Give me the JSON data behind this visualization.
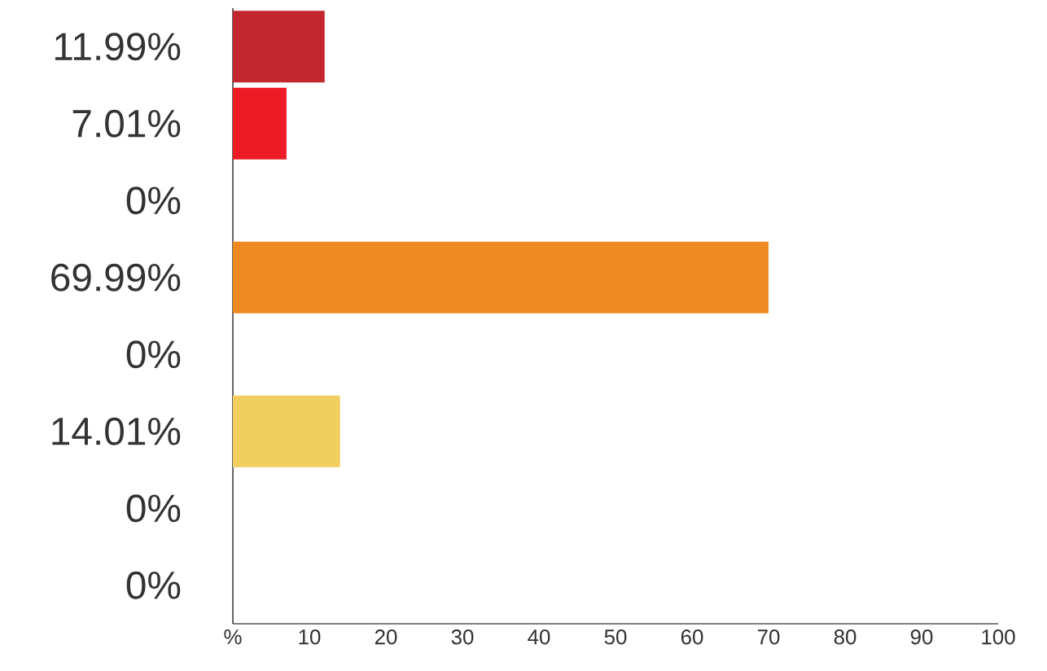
{
  "chart_data": {
    "type": "bar",
    "orientation": "horizontal",
    "categories": [
      null,
      null,
      null,
      null,
      null,
      null,
      null,
      null
    ],
    "values": [
      11.99,
      7.01,
      0,
      69.99,
      0,
      14.01,
      0,
      0
    ],
    "value_labels": [
      "11.99%",
      "7.01%",
      "0%",
      "69.99%",
      "0%",
      "14.01%",
      "0%",
      "0%"
    ],
    "colors": [
      "#c1272d",
      "#ed1c24",
      "#f15a29",
      "#ef8a22",
      "#f7a93b",
      "#f2ce5f",
      "#7a7e83",
      "#2b2e33"
    ],
    "xlim": [
      0,
      100
    ],
    "xticks": [
      {
        "value": 0,
        "label": "%"
      },
      10,
      20,
      30,
      40,
      50,
      60,
      70,
      80,
      90,
      100
    ],
    "grid": false
  }
}
